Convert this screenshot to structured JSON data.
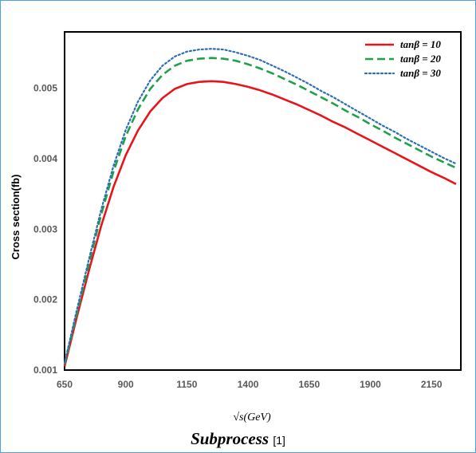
{
  "chart_data": {
    "type": "line",
    "title": "",
    "xlabel": "√s(GeV)",
    "ylabel": "Cross section(fb)",
    "xlim": [
      650,
      2270
    ],
    "ylim": [
      0.001,
      0.0058
    ],
    "xticks": [
      "650",
      "900",
      "1150",
      "1400",
      "1650",
      "1900",
      "2150"
    ],
    "xtick_values": [
      650,
      900,
      1150,
      1400,
      1650,
      1900,
      2150
    ],
    "yticks": [
      "0.001",
      "0.002",
      "0.003",
      "0.004",
      "0.005"
    ],
    "ytick_values": [
      0.001,
      0.002,
      0.003,
      0.004,
      0.005
    ],
    "grid": false,
    "legend_position": "top-right",
    "series": [
      {
        "name": "tanβ = 10",
        "color": "#e8141b",
        "style": "solid",
        "x": [
          650,
          700,
          750,
          800,
          850,
          900,
          950,
          1000,
          1050,
          1100,
          1150,
          1200,
          1250,
          1300,
          1350,
          1400,
          1450,
          1500,
          1550,
          1600,
          1650,
          1700,
          1750,
          1800,
          1850,
          1900,
          1950,
          2000,
          2050,
          2100,
          2150,
          2200,
          2250
        ],
        "y": [
          0.00105,
          0.00175,
          0.00242,
          0.00305,
          0.0036,
          0.00405,
          0.0044,
          0.00467,
          0.00486,
          0.00499,
          0.00506,
          0.00509,
          0.0051,
          0.00509,
          0.00506,
          0.00502,
          0.00497,
          0.00491,
          0.00484,
          0.00477,
          0.00469,
          0.00461,
          0.00452,
          0.00444,
          0.00435,
          0.00426,
          0.00417,
          0.00408,
          0.00399,
          0.0039,
          0.00381,
          0.00373,
          0.00364
        ]
      },
      {
        "name": "tanβ = 20",
        "color": "#1fa14a",
        "style": "dashed",
        "x": [
          650,
          700,
          750,
          800,
          850,
          900,
          950,
          1000,
          1050,
          1100,
          1150,
          1200,
          1250,
          1300,
          1350,
          1400,
          1450,
          1500,
          1550,
          1600,
          1650,
          1700,
          1750,
          1800,
          1850,
          1900,
          1950,
          2000,
          2050,
          2100,
          2150,
          2200,
          2250
        ],
        "y": [
          0.00108,
          0.0018,
          0.00252,
          0.00321,
          0.00382,
          0.00432,
          0.0047,
          0.00499,
          0.00519,
          0.00532,
          0.00539,
          0.00542,
          0.00543,
          0.00542,
          0.00539,
          0.00534,
          0.00528,
          0.00521,
          0.00513,
          0.00505,
          0.00496,
          0.00487,
          0.00478,
          0.00468,
          0.00459,
          0.00449,
          0.0044,
          0.0043,
          0.00421,
          0.00412,
          0.00403,
          0.00395,
          0.00387
        ]
      },
      {
        "name": "tanβ = 30",
        "color": "#2e6db4",
        "style": "dotted",
        "x": [
          650,
          700,
          750,
          800,
          850,
          900,
          950,
          1000,
          1050,
          1100,
          1150,
          1200,
          1250,
          1300,
          1350,
          1400,
          1450,
          1500,
          1550,
          1600,
          1650,
          1700,
          1750,
          1800,
          1850,
          1900,
          1950,
          2000,
          2050,
          2100,
          2150,
          2200,
          2250
        ],
        "y": [
          0.0011,
          0.00185,
          0.00258,
          0.00328,
          0.0039,
          0.00441,
          0.00481,
          0.00511,
          0.00532,
          0.00545,
          0.00552,
          0.00555,
          0.00556,
          0.00555,
          0.00551,
          0.00546,
          0.0054,
          0.00532,
          0.00524,
          0.00515,
          0.00506,
          0.00496,
          0.00487,
          0.00477,
          0.00467,
          0.00457,
          0.00447,
          0.00438,
          0.00428,
          0.00419,
          0.0041,
          0.00401,
          0.00393
        ]
      }
    ]
  },
  "caption": {
    "main": "Subprocess",
    "ref": "[1]"
  }
}
